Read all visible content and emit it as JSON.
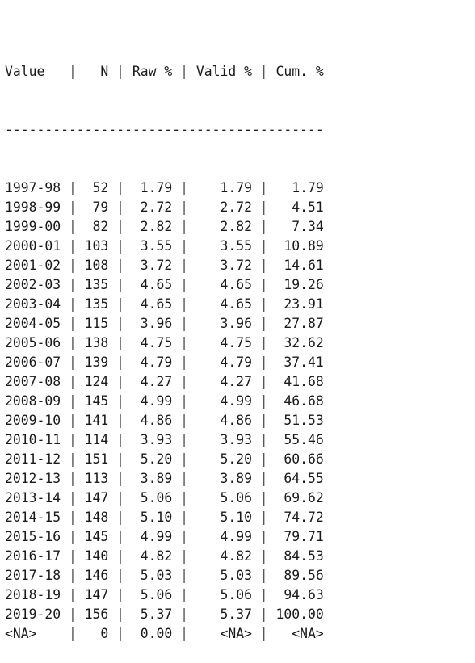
{
  "table": {
    "headers": [
      "Value",
      "N",
      "Raw %",
      "Valid %",
      "Cum. %"
    ],
    "rule_char": "-",
    "rows": [
      [
        "1997-98",
        "52",
        "1.79",
        "1.79",
        "1.79"
      ],
      [
        "1998-99",
        "79",
        "2.72",
        "2.72",
        "4.51"
      ],
      [
        "1999-00",
        "82",
        "2.82",
        "2.82",
        "7.34"
      ],
      [
        "2000-01",
        "103",
        "3.55",
        "3.55",
        "10.89"
      ],
      [
        "2001-02",
        "108",
        "3.72",
        "3.72",
        "14.61"
      ],
      [
        "2002-03",
        "135",
        "4.65",
        "4.65",
        "19.26"
      ],
      [
        "2003-04",
        "135",
        "4.65",
        "4.65",
        "23.91"
      ],
      [
        "2004-05",
        "115",
        "3.96",
        "3.96",
        "27.87"
      ],
      [
        "2005-06",
        "138",
        "4.75",
        "4.75",
        "32.62"
      ],
      [
        "2006-07",
        "139",
        "4.79",
        "4.79",
        "37.41"
      ],
      [
        "2007-08",
        "124",
        "4.27",
        "4.27",
        "41.68"
      ],
      [
        "2008-09",
        "145",
        "4.99",
        "4.99",
        "46.68"
      ],
      [
        "2009-10",
        "141",
        "4.86",
        "4.86",
        "51.53"
      ],
      [
        "2010-11",
        "114",
        "3.93",
        "3.93",
        "55.46"
      ],
      [
        "2011-12",
        "151",
        "5.20",
        "5.20",
        "60.66"
      ],
      [
        "2012-13",
        "113",
        "3.89",
        "3.89",
        "64.55"
      ],
      [
        "2013-14",
        "147",
        "5.06",
        "5.06",
        "69.62"
      ],
      [
        "2014-15",
        "148",
        "5.10",
        "5.10",
        "74.72"
      ],
      [
        "2015-16",
        "145",
        "4.99",
        "4.99",
        "79.71"
      ],
      [
        "2016-17",
        "140",
        "4.82",
        "4.82",
        "84.53"
      ],
      [
        "2017-18",
        "146",
        "5.03",
        "5.03",
        "89.56"
      ],
      [
        "2018-19",
        "147",
        "5.06",
        "5.06",
        "94.63"
      ],
      [
        "2019-20",
        "156",
        "5.37",
        "5.37",
        "100.00"
      ],
      [
        "<NA>",
        "0",
        "0.00",
        "<NA>",
        "<NA>"
      ]
    ]
  }
}
